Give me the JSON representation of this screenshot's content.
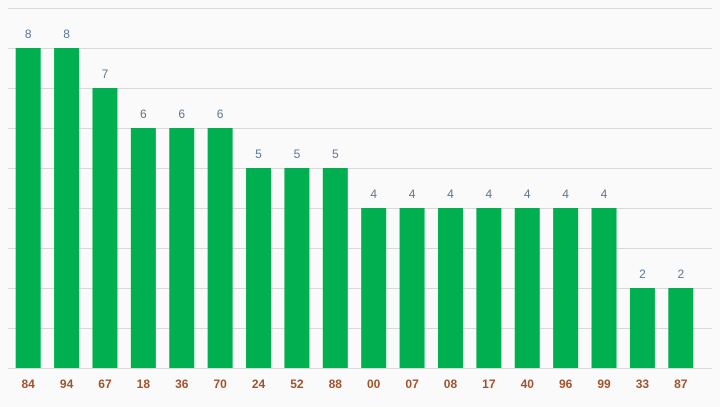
{
  "chart_data": {
    "type": "bar",
    "categories": [
      "84",
      "94",
      "67",
      "18",
      "36",
      "70",
      "24",
      "52",
      "88",
      "00",
      "07",
      "08",
      "17",
      "40",
      "96",
      "99",
      "33",
      "87"
    ],
    "values": [
      8,
      8,
      7,
      6,
      6,
      6,
      5,
      5,
      5,
      4,
      4,
      4,
      4,
      4,
      4,
      4,
      2,
      2
    ],
    "color": "#00b050",
    "ylim": [
      0,
      9
    ],
    "yticks": [
      0,
      1,
      2,
      3,
      4,
      5,
      6,
      7,
      8,
      9
    ],
    "grid": true
  }
}
